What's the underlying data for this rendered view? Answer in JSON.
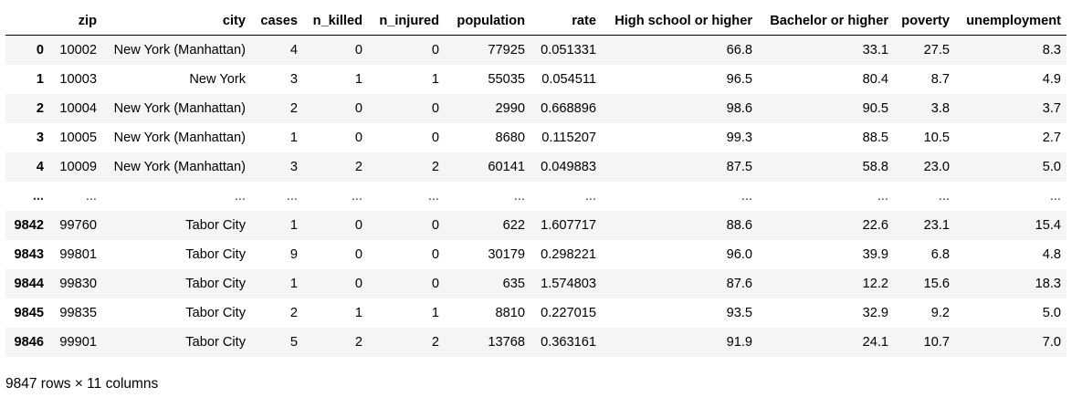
{
  "table": {
    "columns": [
      "",
      "zip",
      "city",
      "cases",
      "n_killed",
      "n_injured",
      "population",
      "rate",
      "High school or higher",
      "Bachelor or higher",
      "poverty",
      "unemployment"
    ],
    "rows": [
      [
        "0",
        "10002",
        "New York (Manhattan)",
        "4",
        "0",
        "0",
        "77925",
        "0.051331",
        "66.8",
        "33.1",
        "27.5",
        "8.3"
      ],
      [
        "1",
        "10003",
        "New York",
        "3",
        "1",
        "1",
        "55035",
        "0.054511",
        "96.5",
        "80.4",
        "8.7",
        "4.9"
      ],
      [
        "2",
        "10004",
        "New York (Manhattan)",
        "2",
        "0",
        "0",
        "2990",
        "0.668896",
        "98.6",
        "90.5",
        "3.8",
        "3.7"
      ],
      [
        "3",
        "10005",
        "New York (Manhattan)",
        "1",
        "0",
        "0",
        "8680",
        "0.115207",
        "99.3",
        "88.5",
        "10.5",
        "2.7"
      ],
      [
        "4",
        "10009",
        "New York (Manhattan)",
        "3",
        "2",
        "2",
        "60141",
        "0.049883",
        "87.5",
        "58.8",
        "23.0",
        "5.0"
      ],
      [
        "...",
        "...",
        "...",
        "...",
        "...",
        "...",
        "...",
        "...",
        "...",
        "...",
        "...",
        "..."
      ],
      [
        "9842",
        "99760",
        "Tabor City",
        "1",
        "0",
        "0",
        "622",
        "1.607717",
        "88.6",
        "22.6",
        "23.1",
        "15.4"
      ],
      [
        "9843",
        "99801",
        "Tabor City",
        "9",
        "0",
        "0",
        "30179",
        "0.298221",
        "96.0",
        "39.9",
        "6.8",
        "4.8"
      ],
      [
        "9844",
        "99830",
        "Tabor City",
        "1",
        "0",
        "0",
        "635",
        "1.574803",
        "87.6",
        "12.2",
        "15.6",
        "18.3"
      ],
      [
        "9845",
        "99835",
        "Tabor City",
        "2",
        "1",
        "1",
        "8810",
        "0.227015",
        "93.5",
        "32.9",
        "9.2",
        "5.0"
      ],
      [
        "9846",
        "99901",
        "Tabor City",
        "5",
        "2",
        "2",
        "13768",
        "0.363161",
        "91.9",
        "24.1",
        "10.7",
        "7.0"
      ]
    ]
  },
  "caption": "9847 rows × 11 columns"
}
